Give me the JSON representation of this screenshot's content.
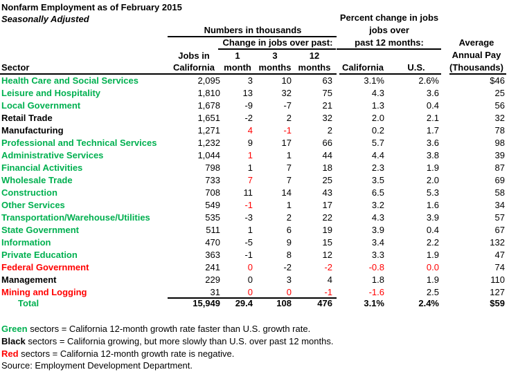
{
  "title": "Nonfarm Employment as of February 2015",
  "subtitle": "Seasonally Adjusted",
  "colors": {
    "green": "#00b050",
    "red": "#ff0000",
    "black": "#000000"
  },
  "headers": {
    "numbers_group": "Numbers in thousands",
    "change_group": "Change in jobs over past:",
    "pct_group_line1": "Percent change in jobs",
    "pct_group_line2": "jobs over",
    "pct_group_line3": "past 12 months:",
    "sector": "Sector",
    "jobs_line1": "Jobs in",
    "jobs_line2": "California",
    "m1_line1": "1",
    "m1_line2": "month",
    "m3_line1": "3",
    "m3_line2": "months",
    "m12_line1": "12",
    "m12_line2": "months",
    "pct_ca": "California",
    "pct_us": "U.S.",
    "pay_line1": "Average",
    "pay_line2": "Annual Pay",
    "pay_line3": "(Thousands)"
  },
  "rows": [
    {
      "sector": "Health Care and Social Services",
      "color": "green",
      "jobs": "2,095",
      "m1": "3",
      "m3": "10",
      "m12": "63",
      "pct_ca": "3.1%",
      "pct_us": "2.6%",
      "pay": "$46",
      "red_cells": []
    },
    {
      "sector": "Leisure and Hospitality",
      "color": "green",
      "jobs": "1,810",
      "m1": "13",
      "m3": "32",
      "m12": "75",
      "pct_ca": "4.3",
      "pct_us": "3.6",
      "pay": "25",
      "red_cells": []
    },
    {
      "sector": "Local Government",
      "color": "green",
      "jobs": "1,678",
      "m1": "-9",
      "m3": "-7",
      "m12": "21",
      "pct_ca": "1.3",
      "pct_us": "0.4",
      "pay": "56",
      "red_cells": []
    },
    {
      "sector": "Retail Trade",
      "color": "black",
      "jobs": "1,651",
      "m1": "-2",
      "m3": "2",
      "m12": "32",
      "pct_ca": "2.0",
      "pct_us": "2.1",
      "pay": "32",
      "red_cells": []
    },
    {
      "sector": "Manufacturing",
      "color": "black",
      "jobs": "1,271",
      "m1": "4",
      "m3": "-1",
      "m12": "2",
      "pct_ca": "0.2",
      "pct_us": "1.7",
      "pay": "78",
      "red_cells": [
        "m1",
        "m3"
      ]
    },
    {
      "sector": "Professional and Technical Services",
      "color": "green",
      "jobs": "1,232",
      "m1": "9",
      "m3": "17",
      "m12": "66",
      "pct_ca": "5.7",
      "pct_us": "3.6",
      "pay": "98",
      "red_cells": []
    },
    {
      "sector": "Administrative Services",
      "color": "green",
      "jobs": "1,044",
      "m1": "1",
      "m3": "1",
      "m12": "44",
      "pct_ca": "4.4",
      "pct_us": "3.8",
      "pay": "39",
      "red_cells": [
        "m1"
      ]
    },
    {
      "sector": "Financial Activities",
      "color": "green",
      "jobs": "798",
      "m1": "1",
      "m3": "7",
      "m12": "18",
      "pct_ca": "2.3",
      "pct_us": "1.9",
      "pay": "87",
      "red_cells": []
    },
    {
      "sector": "Wholesale Trade",
      "color": "green",
      "jobs": "733",
      "m1": "7",
      "m3": "7",
      "m12": "25",
      "pct_ca": "3.5",
      "pct_us": "2.0",
      "pay": "69",
      "red_cells": [
        "m1"
      ]
    },
    {
      "sector": "Construction",
      "color": "green",
      "jobs": "708",
      "m1": "11",
      "m3": "14",
      "m12": "43",
      "pct_ca": "6.5",
      "pct_us": "5.3",
      "pay": "58",
      "red_cells": []
    },
    {
      "sector": "Other Services",
      "color": "green",
      "jobs": "549",
      "m1": "-1",
      "m3": "1",
      "m12": "17",
      "pct_ca": "3.2",
      "pct_us": "1.6",
      "pay": "34",
      "red_cells": [
        "m1"
      ]
    },
    {
      "sector": "Transportation/Warehouse/Utilities",
      "color": "green",
      "jobs": "535",
      "m1": "-3",
      "m3": "2",
      "m12": "22",
      "pct_ca": "4.3",
      "pct_us": "3.9",
      "pay": "57",
      "red_cells": []
    },
    {
      "sector": "State Government",
      "color": "green",
      "jobs": "511",
      "m1": "1",
      "m3": "6",
      "m12": "19",
      "pct_ca": "3.9",
      "pct_us": "0.4",
      "pay": "67",
      "red_cells": []
    },
    {
      "sector": "Information",
      "color": "green",
      "jobs": "470",
      "m1": "-5",
      "m3": "9",
      "m12": "15",
      "pct_ca": "3.4",
      "pct_us": "2.2",
      "pay": "132",
      "red_cells": []
    },
    {
      "sector": "Private Education",
      "color": "green",
      "jobs": "363",
      "m1": "-1",
      "m3": "8",
      "m12": "12",
      "pct_ca": "3.3",
      "pct_us": "1.9",
      "pay": "47",
      "red_cells": []
    },
    {
      "sector": "Federal Government",
      "color": "red",
      "jobs": "241",
      "m1": "0",
      "m3": "-2",
      "m12": "-2",
      "pct_ca": "-0.8",
      "pct_us": "0.0",
      "pay": "74",
      "red_cells": [
        "m1",
        "m12",
        "pct_ca",
        "pct_us"
      ]
    },
    {
      "sector": "Management",
      "color": "black",
      "jobs": "229",
      "m1": "0",
      "m3": "3",
      "m12": "4",
      "pct_ca": "1.8",
      "pct_us": "1.9",
      "pay": "110",
      "red_cells": []
    },
    {
      "sector": "Mining and Logging",
      "color": "red",
      "jobs": "31",
      "m1": "0",
      "m3": "0",
      "m12": "-1",
      "pct_ca": "-1.6",
      "pct_us": "2.5",
      "pay": "127",
      "red_cells": [
        "m1",
        "m3",
        "m12",
        "pct_ca"
      ]
    }
  ],
  "total": {
    "label": "Total",
    "jobs": "15,949",
    "m1": "29.4",
    "m3": "108",
    "m12": "476",
    "pct_ca": "3.1%",
    "pct_us": "2.4%",
    "pay": "$59"
  },
  "legend": [
    {
      "key": "Green",
      "rest": " sectors = California 12-month growth rate faster than U.S. growth rate.",
      "color": "green"
    },
    {
      "key": "Black",
      "rest": " sectors = California growing, but more slowly than U.S. over past 12 months.",
      "color": "black"
    },
    {
      "key": "Red",
      "rest": " sectors = California 12-month growth rate is negative.",
      "color": "red"
    }
  ],
  "source": "Source: Employment Development Department."
}
